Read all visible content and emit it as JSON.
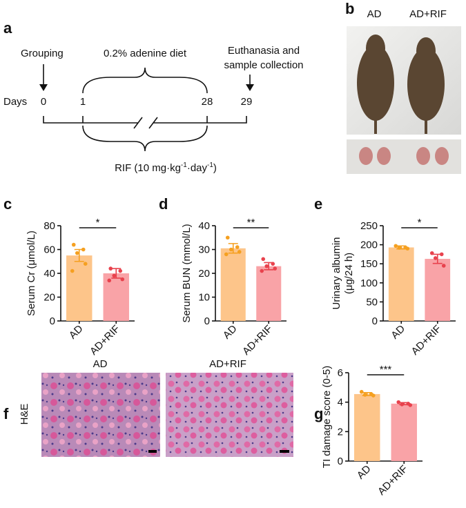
{
  "timeline": {
    "label": "a",
    "days_label": "Days",
    "days": [
      0,
      1,
      28,
      29
    ],
    "grouping": "Grouping",
    "diet": "0.2% adenine diet",
    "euthanasia": [
      "Euthanasia and",
      "sample collection"
    ],
    "rif": [
      "RIF (10 mg·kg",
      "-1",
      "·day",
      "-1",
      ")"
    ]
  },
  "photo": {
    "label": "b",
    "columns": [
      "AD",
      "AD+RIF"
    ]
  },
  "histology": {
    "label": "f",
    "columns": [
      "AD",
      "AD+RIF"
    ],
    "stain": "H&E"
  },
  "chart_data": [
    {
      "type": "bar",
      "label": "c",
      "ylabel": "Serum Cr (μmol/L)",
      "categories": [
        "AD",
        "AD+RIF"
      ],
      "values": [
        55,
        40
      ],
      "errors": [
        5,
        4
      ],
      "points": [
        [
          64,
          60,
          57,
          48,
          42
        ],
        [
          44,
          42,
          38,
          35,
          34
        ]
      ],
      "colors": [
        "#fdc58a",
        "#f9a3a7"
      ],
      "point_colors": [
        "#f5a020",
        "#e8424d"
      ],
      "ylim": [
        0,
        80
      ],
      "yticks": [
        0,
        20,
        40,
        60,
        80
      ],
      "significance": "*"
    },
    {
      "type": "bar",
      "label": "d",
      "ylabel": "Serum BUN (mmol/L)",
      "categories": [
        "AD",
        "AD+RIF"
      ],
      "values": [
        30.5,
        23
      ],
      "errors": [
        2,
        1.5
      ],
      "points": [
        [
          35,
          31,
          30,
          29,
          28
        ],
        [
          26,
          24,
          23,
          22,
          21
        ]
      ],
      "colors": [
        "#fdc58a",
        "#f9a3a7"
      ],
      "point_colors": [
        "#f5a020",
        "#e8424d"
      ],
      "ylim": [
        0,
        40
      ],
      "yticks": [
        0,
        10,
        20,
        30,
        40
      ],
      "significance": "**"
    },
    {
      "type": "bar",
      "label": "e",
      "ylabel": [
        "Urinary albumin",
        "(μg/24 h)"
      ],
      "categories": [
        "AD",
        "AD+RIF"
      ],
      "values": [
        193,
        163
      ],
      "errors": [
        4,
        12
      ],
      "points": [
        [
          197,
          193,
          192,
          190
        ],
        [
          178,
          175,
          165,
          145
        ]
      ],
      "colors": [
        "#fdc58a",
        "#f9a3a7"
      ],
      "point_colors": [
        "#f5a020",
        "#e8424d"
      ],
      "ylim": [
        0,
        250
      ],
      "yticks": [
        0,
        50,
        100,
        150,
        200,
        250
      ],
      "significance": "*"
    },
    {
      "type": "bar",
      "label": "g",
      "ylabel": "TI damage score (0-5)",
      "categories": [
        "AD",
        "AD+RIF"
      ],
      "values": [
        4.55,
        3.9
      ],
      "errors": [
        0.1,
        0.07
      ],
      "points": [
        [
          4.7,
          4.55,
          4.5,
          4.45
        ],
        [
          4.0,
          3.9,
          3.85,
          3.8
        ]
      ],
      "colors": [
        "#fdc58a",
        "#f9a3a7"
      ],
      "point_colors": [
        "#f5a020",
        "#e8424d"
      ],
      "ylim": [
        0,
        6
      ],
      "yticks": [
        0,
        2,
        4,
        6
      ],
      "significance": "***"
    }
  ]
}
